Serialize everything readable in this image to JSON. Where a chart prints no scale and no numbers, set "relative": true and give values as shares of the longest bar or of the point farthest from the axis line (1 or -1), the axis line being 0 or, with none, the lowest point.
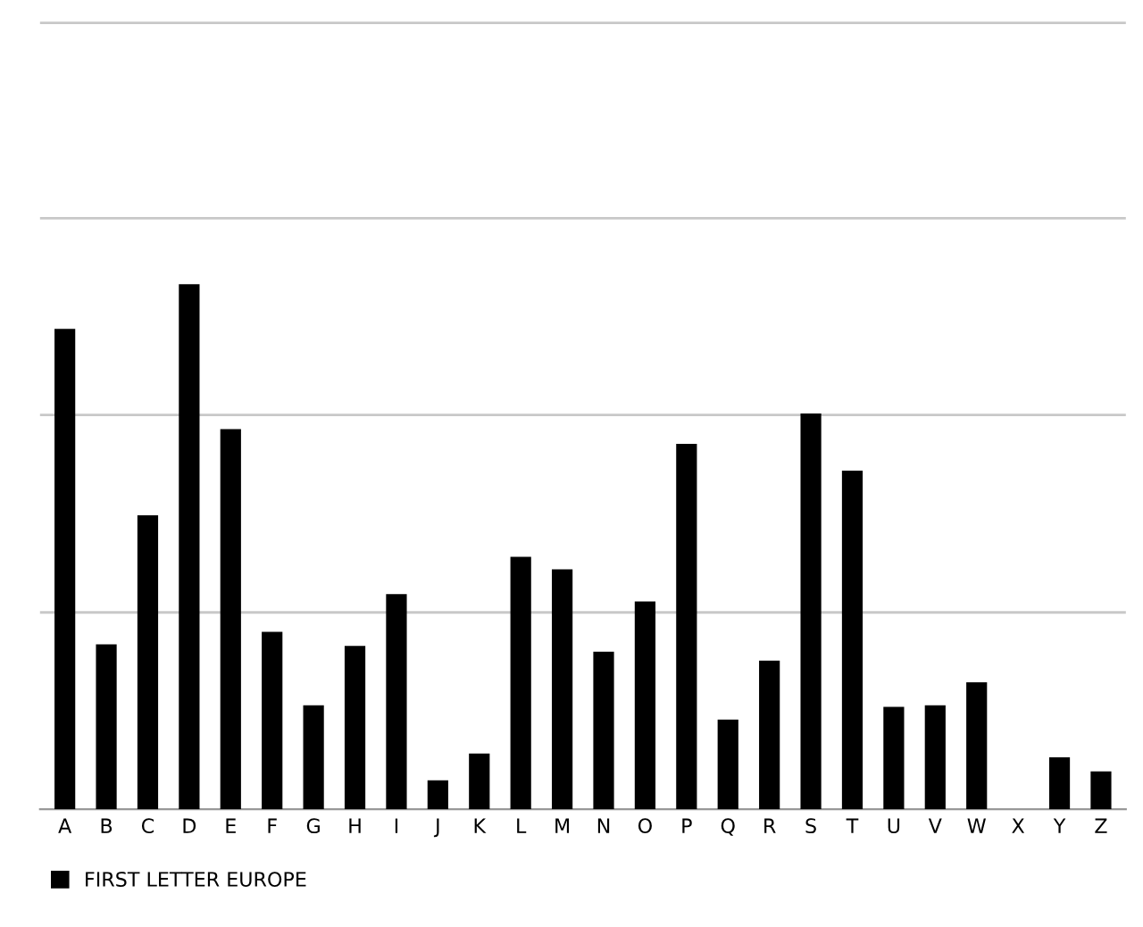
{
  "chart_data": {
    "type": "bar",
    "relative": true,
    "ref_lines": [
      {
        "axis": "y",
        "value": 0.375,
        "color": "#c8c8c8"
      },
      {
        "axis": "y",
        "value": 0.751,
        "color": "#c8c8c8"
      },
      {
        "axis": "y",
        "value": 1.126,
        "color": "#c8c8c8"
      },
      {
        "axis": "y",
        "value": 1.498,
        "color": "#c8c8c8"
      }
    ],
    "legend": "bottom left",
    "categories": [
      "A",
      "B",
      "C",
      "D",
      "E",
      "F",
      "G",
      "H",
      "I",
      "J",
      "K",
      "L",
      "M",
      "N",
      "O",
      "P",
      "Q",
      "R",
      "S",
      "T",
      "U",
      "V",
      "W",
      "X",
      "Y",
      "Z"
    ],
    "series": [
      {
        "name": "FIRST LETTER EUROPE",
        "color": "#000000",
        "values": [
          0.915,
          0.314,
          0.56,
          1,
          0.724,
          0.338,
          0.198,
          0.311,
          0.41,
          0.055,
          0.106,
          0.481,
          0.457,
          0.3,
          0.396,
          0.696,
          0.171,
          0.283,
          0.754,
          0.645,
          0.195,
          0.198,
          0.242,
          0,
          0.099,
          0.072
        ]
      }
    ]
  }
}
